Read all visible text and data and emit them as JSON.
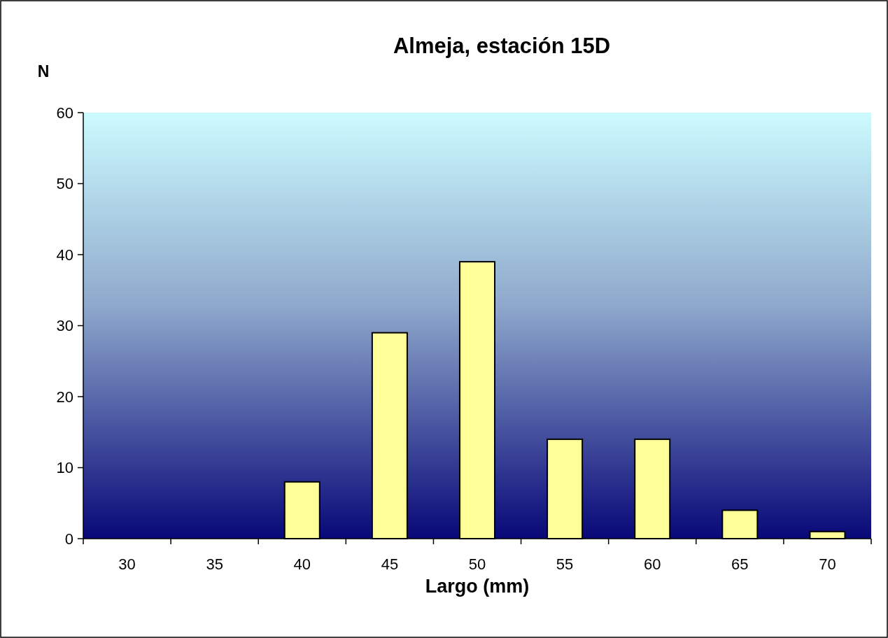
{
  "chart_data": {
    "type": "bar",
    "title": "Almeja, estación 15D",
    "xlabel": "Largo (mm)",
    "ylabel": "N",
    "categories": [
      "30",
      "35",
      "40",
      "45",
      "50",
      "55",
      "60",
      "65",
      "70"
    ],
    "values": [
      0,
      0,
      8,
      29,
      39,
      14,
      14,
      4,
      1
    ],
    "color": "#ffff99",
    "ylim": [
      0,
      60
    ],
    "yticks": [
      0,
      10,
      20,
      30,
      40,
      50,
      60
    ],
    "grid": false
  }
}
